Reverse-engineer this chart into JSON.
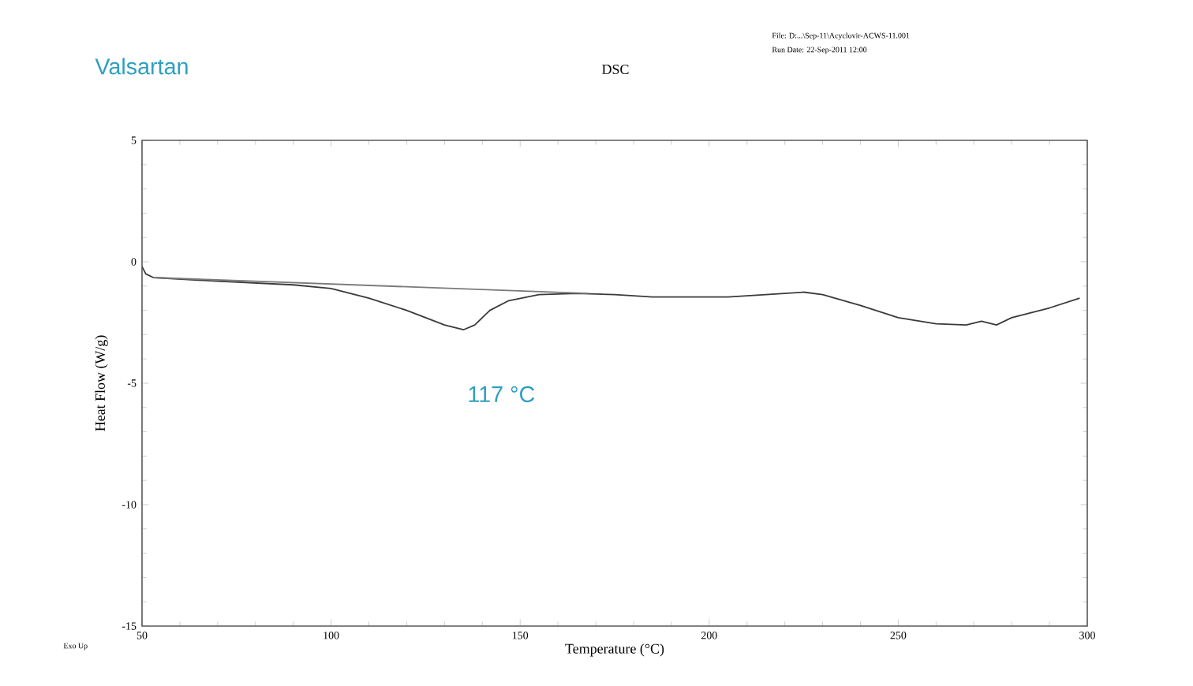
{
  "chart_data": {
    "type": "line",
    "title": "Valsartan",
    "subtitle": "DSC",
    "xlabel": "Temperature (°C)",
    "ylabel": "Heat Flow (W/g)",
    "annotations": [
      "File: D:...\\Sep-11\\Acyclovir-ACWS-11.001",
      "Run Date: 22-Sep-2011 12:00",
      "117 °C",
      "Exo Up"
    ],
    "xlim": [
      50,
      300
    ],
    "ylim": [
      -15,
      5
    ],
    "xticks": [
      50,
      100,
      150,
      200,
      250,
      300
    ],
    "yticks": [
      -15,
      -10,
      -5,
      0,
      5
    ],
    "grid": false,
    "legend": false,
    "marker": "none",
    "line_style": "solid",
    "series": [
      {
        "color": "#3a3a3a",
        "x": [
          50,
          51,
          53,
          70,
          90,
          100,
          110,
          120,
          130,
          135,
          138,
          142,
          147,
          155,
          165,
          175,
          185,
          195,
          205,
          215,
          225,
          230,
          240,
          250,
          260,
          268,
          272,
          276,
          280,
          290,
          298
        ],
        "values": [
          -0.2,
          -0.5,
          -0.65,
          -0.8,
          -0.95,
          -1.1,
          -1.5,
          -2.0,
          -2.6,
          -2.8,
          -2.6,
          -2.0,
          -1.6,
          -1.35,
          -1.3,
          -1.35,
          -1.45,
          -1.45,
          -1.45,
          -1.35,
          -1.25,
          -1.35,
          -1.8,
          -2.3,
          -2.55,
          -2.6,
          -2.45,
          -2.6,
          -2.3,
          -1.9,
          -1.5
        ]
      },
      {
        "color": "#7a7a7a",
        "x": [
          53,
          168
        ],
        "values": [
          -0.65,
          -1.3
        ]
      }
    ]
  }
}
